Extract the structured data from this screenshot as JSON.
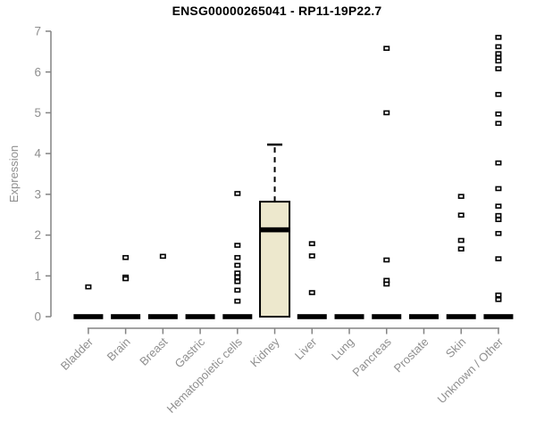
{
  "chart_data": {
    "type": "box",
    "title": "ENSG00000265041 - RP11-19P22.7",
    "ylabel": "Expression",
    "ylim": [
      0,
      7
    ],
    "yticks": [
      0,
      1,
      2,
      3,
      4,
      5,
      6,
      7
    ],
    "grid": false,
    "legend": "none",
    "colors": {
      "box_fill": "#ede8cd",
      "box_stroke": "#000000",
      "outlier_fill": "#ffffff",
      "axis_line": "#848484",
      "axis_text": "#8f8f8f",
      "title_text": "#000000"
    },
    "categories": [
      "Bladder",
      "Brain",
      "Breast",
      "Gastric",
      "Hematopoietic cells",
      "Kidney",
      "Liver",
      "Lung",
      "Pancreas",
      "Prostate",
      "Skin",
      "Unknown / Other"
    ],
    "series": [
      {
        "category": "Bladder",
        "q1": 0,
        "median": 0,
        "q3": 0,
        "whisker_low": 0,
        "whisker_high": 0,
        "outliers": [
          0.73
        ]
      },
      {
        "category": "Brain",
        "q1": 0,
        "median": 0,
        "q3": 0,
        "whisker_low": 0,
        "whisker_high": 0,
        "outliers": [
          1.45,
          0.97,
          0.93
        ]
      },
      {
        "category": "Breast",
        "q1": 0,
        "median": 0,
        "q3": 0,
        "whisker_low": 0,
        "whisker_high": 0,
        "outliers": [
          1.48
        ]
      },
      {
        "category": "Gastric",
        "q1": 0,
        "median": 0,
        "q3": 0,
        "whisker_low": 0,
        "whisker_high": 0,
        "outliers": []
      },
      {
        "category": "Hematopoietic cells",
        "q1": 0,
        "median": 0,
        "q3": 0,
        "whisker_low": 0,
        "whisker_high": 0,
        "outliers": [
          3.02,
          1.75,
          1.45,
          1.26,
          1.07,
          0.97,
          0.86,
          0.65,
          0.38
        ]
      },
      {
        "category": "Kidney",
        "q1": 0,
        "median": 2.13,
        "q3": 2.82,
        "whisker_low": 0,
        "whisker_high": 4.22,
        "outliers": []
      },
      {
        "category": "Liver",
        "q1": 0,
        "median": 0,
        "q3": 0,
        "whisker_low": 0,
        "whisker_high": 0,
        "outliers": [
          1.79,
          1.49,
          0.59
        ]
      },
      {
        "category": "Lung",
        "q1": 0,
        "median": 0,
        "q3": 0,
        "whisker_low": 0,
        "whisker_high": 0,
        "outliers": []
      },
      {
        "category": "Pancreas",
        "q1": 0,
        "median": 0,
        "q3": 0,
        "whisker_low": 0,
        "whisker_high": 0,
        "outliers": [
          6.58,
          5.0,
          1.39,
          0.89,
          0.8
        ]
      },
      {
        "category": "Prostate",
        "q1": 0,
        "median": 0,
        "q3": 0,
        "whisker_low": 0,
        "whisker_high": 0,
        "outliers": []
      },
      {
        "category": "Skin",
        "q1": 0,
        "median": 0,
        "q3": 0,
        "whisker_low": 0,
        "whisker_high": 0,
        "outliers": [
          2.95,
          2.49,
          1.87,
          1.66
        ]
      },
      {
        "category": "Unknown / Other",
        "q1": 0,
        "median": 0,
        "q3": 0,
        "whisker_low": 0,
        "whisker_high": 0,
        "outliers": [
          6.85,
          6.62,
          6.45,
          6.35,
          6.27,
          6.08,
          5.45,
          4.97,
          4.74,
          3.77,
          3.14,
          2.71,
          2.48,
          2.38,
          2.04,
          1.42,
          0.53,
          0.42
        ]
      }
    ]
  }
}
